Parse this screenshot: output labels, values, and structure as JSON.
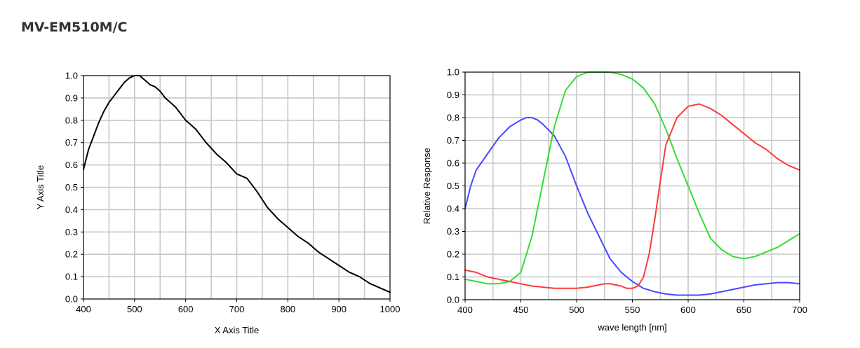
{
  "page": {
    "title": "MV-EM510M/C"
  },
  "chart_data": [
    {
      "type": "line",
      "title": "",
      "xlabel": "X Axis Title",
      "ylabel": "Y Axis Title",
      "xlim": [
        400,
        1000
      ],
      "ylim": [
        0.0,
        1.0
      ],
      "xticks": [
        "400",
        "500",
        "600",
        "700",
        "800",
        "900",
        "1000"
      ],
      "yticks": [
        "0.0",
        "0.1",
        "0.2",
        "0.3",
        "0.4",
        "0.5",
        "0.6",
        "0.7",
        "0.8",
        "0.9",
        "1.0"
      ],
      "grid": true,
      "series": [
        {
          "color": "#000000",
          "x": [
            400,
            410,
            420,
            430,
            440,
            450,
            460,
            470,
            480,
            490,
            500,
            510,
            520,
            530,
            540,
            550,
            560,
            570,
            580,
            590,
            600,
            620,
            640,
            660,
            680,
            700,
            720,
            730,
            740,
            760,
            780,
            800,
            820,
            840,
            860,
            880,
            900,
            920,
            940,
            960,
            980,
            1000
          ],
          "values": [
            0.58,
            0.67,
            0.73,
            0.79,
            0.84,
            0.88,
            0.91,
            0.94,
            0.97,
            0.99,
            1.0,
            1.0,
            0.98,
            0.96,
            0.95,
            0.93,
            0.9,
            0.88,
            0.86,
            0.83,
            0.8,
            0.76,
            0.7,
            0.65,
            0.61,
            0.56,
            0.54,
            0.51,
            0.48,
            0.41,
            0.36,
            0.32,
            0.28,
            0.25,
            0.21,
            0.18,
            0.15,
            0.12,
            0.1,
            0.07,
            0.05,
            0.03
          ]
        }
      ]
    },
    {
      "type": "line",
      "title": "",
      "xlabel": "wave length [nm]",
      "ylabel": "Relative Response",
      "xlim": [
        400,
        700
      ],
      "ylim": [
        0.0,
        1.0
      ],
      "xticks": [
        "400",
        "450",
        "500",
        "550",
        "600",
        "650",
        "700"
      ],
      "yticks": [
        "0.0",
        "0.1",
        "0.2",
        "0.3",
        "0.4",
        "0.5",
        "0.6",
        "0.7",
        "0.8",
        "0.9",
        "1.0"
      ],
      "grid": true,
      "series": [
        {
          "color": "#4a4aff",
          "x": [
            400,
            405,
            410,
            420,
            430,
            440,
            450,
            455,
            460,
            465,
            470,
            480,
            490,
            500,
            510,
            520,
            530,
            540,
            550,
            560,
            570,
            580,
            590,
            600,
            610,
            620,
            630,
            640,
            650,
            660,
            670,
            680,
            690,
            700
          ],
          "values": [
            0.4,
            0.5,
            0.57,
            0.64,
            0.71,
            0.76,
            0.79,
            0.8,
            0.8,
            0.79,
            0.77,
            0.72,
            0.63,
            0.5,
            0.38,
            0.28,
            0.18,
            0.12,
            0.08,
            0.05,
            0.035,
            0.025,
            0.02,
            0.02,
            0.02,
            0.025,
            0.035,
            0.045,
            0.055,
            0.065,
            0.07,
            0.075,
            0.075,
            0.07
          ]
        },
        {
          "color": "#33dd33",
          "x": [
            400,
            410,
            420,
            430,
            440,
            450,
            460,
            470,
            480,
            490,
            500,
            510,
            520,
            530,
            540,
            550,
            560,
            570,
            580,
            590,
            600,
            610,
            620,
            630,
            640,
            650,
            660,
            670,
            680,
            690,
            700
          ],
          "values": [
            0.09,
            0.08,
            0.07,
            0.07,
            0.08,
            0.12,
            0.28,
            0.52,
            0.76,
            0.92,
            0.98,
            1.0,
            1.0,
            1.0,
            0.99,
            0.97,
            0.93,
            0.86,
            0.75,
            0.62,
            0.5,
            0.38,
            0.27,
            0.22,
            0.19,
            0.18,
            0.19,
            0.21,
            0.23,
            0.26,
            0.29
          ]
        },
        {
          "color": "#ff3a3a",
          "x": [
            400,
            410,
            420,
            430,
            440,
            450,
            460,
            470,
            480,
            490,
            500,
            510,
            520,
            525,
            530,
            540,
            545,
            550,
            555,
            560,
            565,
            570,
            575,
            580,
            590,
            600,
            610,
            620,
            630,
            640,
            650,
            660,
            670,
            680,
            690,
            700
          ],
          "values": [
            0.13,
            0.12,
            0.1,
            0.09,
            0.08,
            0.07,
            0.06,
            0.055,
            0.05,
            0.05,
            0.05,
            0.055,
            0.065,
            0.07,
            0.07,
            0.06,
            0.05,
            0.05,
            0.06,
            0.1,
            0.2,
            0.35,
            0.52,
            0.68,
            0.8,
            0.85,
            0.86,
            0.84,
            0.81,
            0.77,
            0.73,
            0.69,
            0.66,
            0.62,
            0.59,
            0.57
          ]
        }
      ]
    }
  ]
}
